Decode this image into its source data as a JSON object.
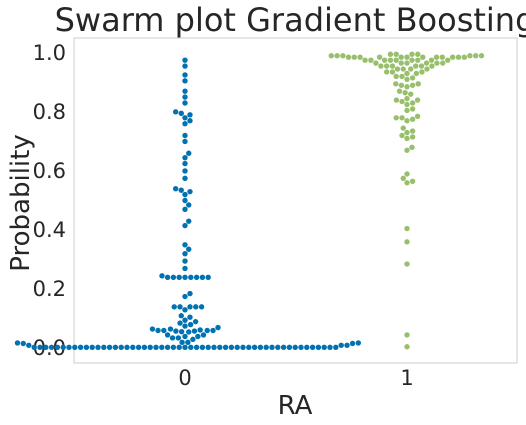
{
  "chart_data": {
    "type": "scatter",
    "subtype": "swarm",
    "title": "Swarm plot Gradient Boosting",
    "xlabel": "RA",
    "ylabel": "Probability",
    "categories": [
      "0",
      "1"
    ],
    "ylim": [
      -0.05,
      1.05
    ],
    "yticks": [
      "0.0",
      "0.2",
      "0.4",
      "0.6",
      "0.8",
      "1.0"
    ],
    "grid": false,
    "colors": {
      "0": "#0072b2",
      "1": "#98c06c"
    },
    "series": [
      {
        "category": "0",
        "values": [
          0.975,
          0.955,
          0.925,
          0.905,
          0.87,
          0.85,
          0.83,
          0.8,
          0.795,
          0.79,
          0.78,
          0.77,
          0.76,
          0.72,
          0.7,
          0.66,
          0.645,
          0.625,
          0.6,
          0.575,
          0.54,
          0.535,
          0.53,
          0.52,
          0.5,
          0.485,
          0.47,
          0.43,
          0.415,
          0.35,
          0.335,
          0.32,
          0.295,
          0.27,
          0.245,
          0.24,
          0.24,
          0.24,
          0.24,
          0.24,
          0.24,
          0.24,
          0.24,
          0.185,
          0.175,
          0.14,
          0.14,
          0.14,
          0.14,
          0.14,
          0.13,
          0.11,
          0.105,
          0.095,
          0.09,
          0.085,
          0.08,
          0.075,
          0.07,
          0.065,
          0.065,
          0.062,
          0.06,
          0.06,
          0.06,
          0.06,
          0.058,
          0.058,
          0.056,
          0.055,
          0.045,
          0.045,
          0.04,
          0.04,
          0.035,
          0.035,
          0.03,
          0.02,
          0.02,
          0.018,
          0.018,
          0.016,
          0.016,
          0.01,
          0.01,
          0.01,
          0.003,
          0.003,
          0.003,
          0.003,
          0.003,
          0.003,
          0.003,
          0.003,
          0.003,
          0.003,
          0.003,
          0.003,
          0.003,
          0.003,
          0.003,
          0.003,
          0.003,
          0.003,
          0.003,
          0.003,
          0.003,
          0.003,
          0.003,
          0.003,
          0.003,
          0.003,
          0.003,
          0.003,
          0.003,
          0.003,
          0.003,
          0.003,
          0.003,
          0.003,
          0.003,
          0.003,
          0.003,
          0.003,
          0.003,
          0.003,
          0.003,
          0.003,
          0.003,
          0.003,
          0.003,
          0.003,
          0.003,
          0.003,
          0.003,
          0.003,
          0.003,
          0.003,
          0.003
        ]
      },
      {
        "category": "1",
        "values": [
          0.995,
          0.995,
          0.995,
          0.995,
          0.99,
          0.99,
          0.99,
          0.99,
          0.99,
          0.99,
          0.985,
          0.985,
          0.985,
          0.985,
          0.985,
          0.985,
          0.985,
          0.985,
          0.985,
          0.985,
          0.985,
          0.985,
          0.975,
          0.975,
          0.975,
          0.975,
          0.975,
          0.975,
          0.975,
          0.975,
          0.975,
          0.965,
          0.965,
          0.965,
          0.965,
          0.965,
          0.965,
          0.955,
          0.955,
          0.955,
          0.955,
          0.955,
          0.955,
          0.945,
          0.945,
          0.945,
          0.945,
          0.935,
          0.935,
          0.935,
          0.93,
          0.93,
          0.92,
          0.92,
          0.915,
          0.91,
          0.895,
          0.895,
          0.89,
          0.89,
          0.885,
          0.87,
          0.865,
          0.86,
          0.845,
          0.84,
          0.84,
          0.835,
          0.83,
          0.825,
          0.81,
          0.805,
          0.785,
          0.78,
          0.78,
          0.775,
          0.77,
          0.745,
          0.735,
          0.73,
          0.72,
          0.715,
          0.71,
          0.68,
          0.67,
          0.59,
          0.575,
          0.565,
          0.56,
          0.405,
          0.36,
          0.285,
          0.045,
          0.005
        ]
      }
    ]
  }
}
